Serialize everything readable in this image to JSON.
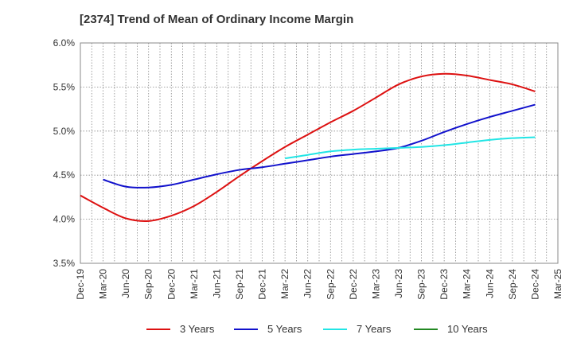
{
  "chart_data": {
    "type": "line",
    "title": "[2374]  Trend of Mean of Ordinary Income Margin",
    "xlabel": "",
    "ylabel": "",
    "x": [
      "Dec-19",
      "Mar-20",
      "Jun-20",
      "Sep-20",
      "Dec-20",
      "Mar-21",
      "Jun-21",
      "Sep-21",
      "Dec-21",
      "Mar-22",
      "Jun-22",
      "Sep-22",
      "Dec-22",
      "Mar-23",
      "Jun-23",
      "Sep-23",
      "Dec-23",
      "Mar-24",
      "Jun-24",
      "Sep-24",
      "Dec-24",
      "Mar-25"
    ],
    "y_ticks": [
      "3.5%",
      "4.0%",
      "4.5%",
      "5.0%",
      "5.5%",
      "6.0%"
    ],
    "ylim": [
      3.5,
      6.0
    ],
    "grid": true,
    "legend_position": "bottom",
    "series": [
      {
        "name": "3 Years",
        "color": "#dd1111",
        "values": [
          4.27,
          4.13,
          4.01,
          3.98,
          4.04,
          4.15,
          4.31,
          4.49,
          4.66,
          4.82,
          4.96,
          5.1,
          5.23,
          5.38,
          5.53,
          5.62,
          5.65,
          5.63,
          5.58,
          5.53,
          5.45,
          null
        ]
      },
      {
        "name": "5 Years",
        "color": "#1111cc",
        "values": [
          null,
          4.45,
          4.37,
          4.36,
          4.39,
          4.45,
          4.51,
          4.56,
          4.59,
          4.63,
          4.67,
          4.71,
          4.74,
          4.77,
          4.81,
          4.89,
          4.99,
          5.08,
          5.16,
          5.23,
          5.3,
          null
        ]
      },
      {
        "name": "7 Years",
        "color": "#22e5e5",
        "values": [
          null,
          null,
          null,
          null,
          null,
          null,
          null,
          null,
          null,
          4.69,
          4.73,
          4.77,
          4.79,
          4.8,
          4.81,
          4.82,
          4.84,
          4.87,
          4.9,
          4.92,
          4.93,
          null
        ]
      },
      {
        "name": "10 Years",
        "color": "#228822",
        "values": [
          null,
          null,
          null,
          null,
          null,
          null,
          null,
          null,
          null,
          null,
          null,
          null,
          null,
          null,
          null,
          null,
          null,
          null,
          null,
          null,
          null,
          null
        ]
      }
    ]
  }
}
